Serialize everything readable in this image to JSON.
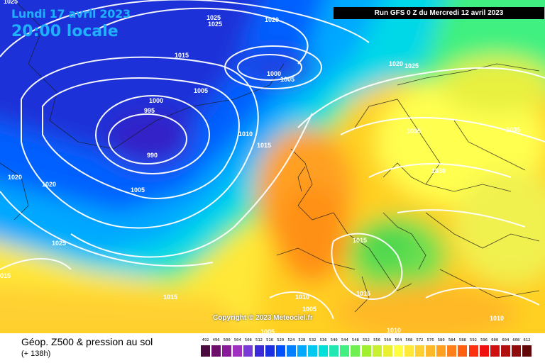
{
  "header": {
    "date": "Lundi 17 avril 2023",
    "time": "20:00 locale",
    "run": "Run GFS 0 Z du Mercredi 12 avril 2023"
  },
  "footer": {
    "title": "Géop. Z500 & pression au sol",
    "lead": "(+ 138h)",
    "copyright": "Copyright © 2023 Meteociel.fr"
  },
  "isobars": [
    {
      "label": "1025"
    },
    {
      "label": "1025"
    },
    {
      "label": "1025"
    },
    {
      "label": "1020"
    },
    {
      "label": "1015"
    },
    {
      "label": "1000"
    },
    {
      "label": "1005"
    },
    {
      "label": "1005"
    },
    {
      "label": "1000"
    },
    {
      "label": "995"
    },
    {
      "label": "990"
    },
    {
      "label": "1010"
    },
    {
      "label": "1015"
    },
    {
      "label": "1005"
    },
    {
      "label": "1020"
    },
    {
      "label": "1020"
    },
    {
      "label": "1025"
    },
    {
      "label": "015"
    },
    {
      "label": "1020"
    },
    {
      "label": "1025"
    },
    {
      "label": "1035"
    },
    {
      "label": "1035"
    },
    {
      "label": "1030"
    },
    {
      "label": "1015"
    },
    {
      "label": "1015"
    },
    {
      "label": "1015"
    },
    {
      "label": "1010"
    },
    {
      "label": "1005"
    },
    {
      "label": "1010"
    },
    {
      "label": "1005"
    },
    {
      "label": "1010"
    },
    {
      "label": "1010"
    }
  ],
  "legend": {
    "values": [
      "492",
      "496",
      "500",
      "504",
      "508",
      "512",
      "516",
      "520",
      "524",
      "528",
      "532",
      "536",
      "540",
      "544",
      "548",
      "552",
      "556",
      "560",
      "564",
      "568",
      "572",
      "576",
      "580",
      "584",
      "588",
      "592",
      "596",
      "600",
      "604",
      "608",
      "612"
    ],
    "colors": [
      "#4b0a3f",
      "#6b0f6b",
      "#8a1a9a",
      "#a030c0",
      "#7a3ad8",
      "#3c2ad8",
      "#1a30e0",
      "#0050ff",
      "#0080ff",
      "#00a8ff",
      "#00c8f0",
      "#00e0d8",
      "#20e8b0",
      "#40f080",
      "#70f050",
      "#a0f030",
      "#c8f030",
      "#e8f030",
      "#ffff40",
      "#ffe838",
      "#ffd030",
      "#ffb828",
      "#ffa020",
      "#ff8018",
      "#ff6010",
      "#ff3010",
      "#f01010",
      "#d01010",
      "#b01010",
      "#900c0c",
      "#600808"
    ]
  }
}
